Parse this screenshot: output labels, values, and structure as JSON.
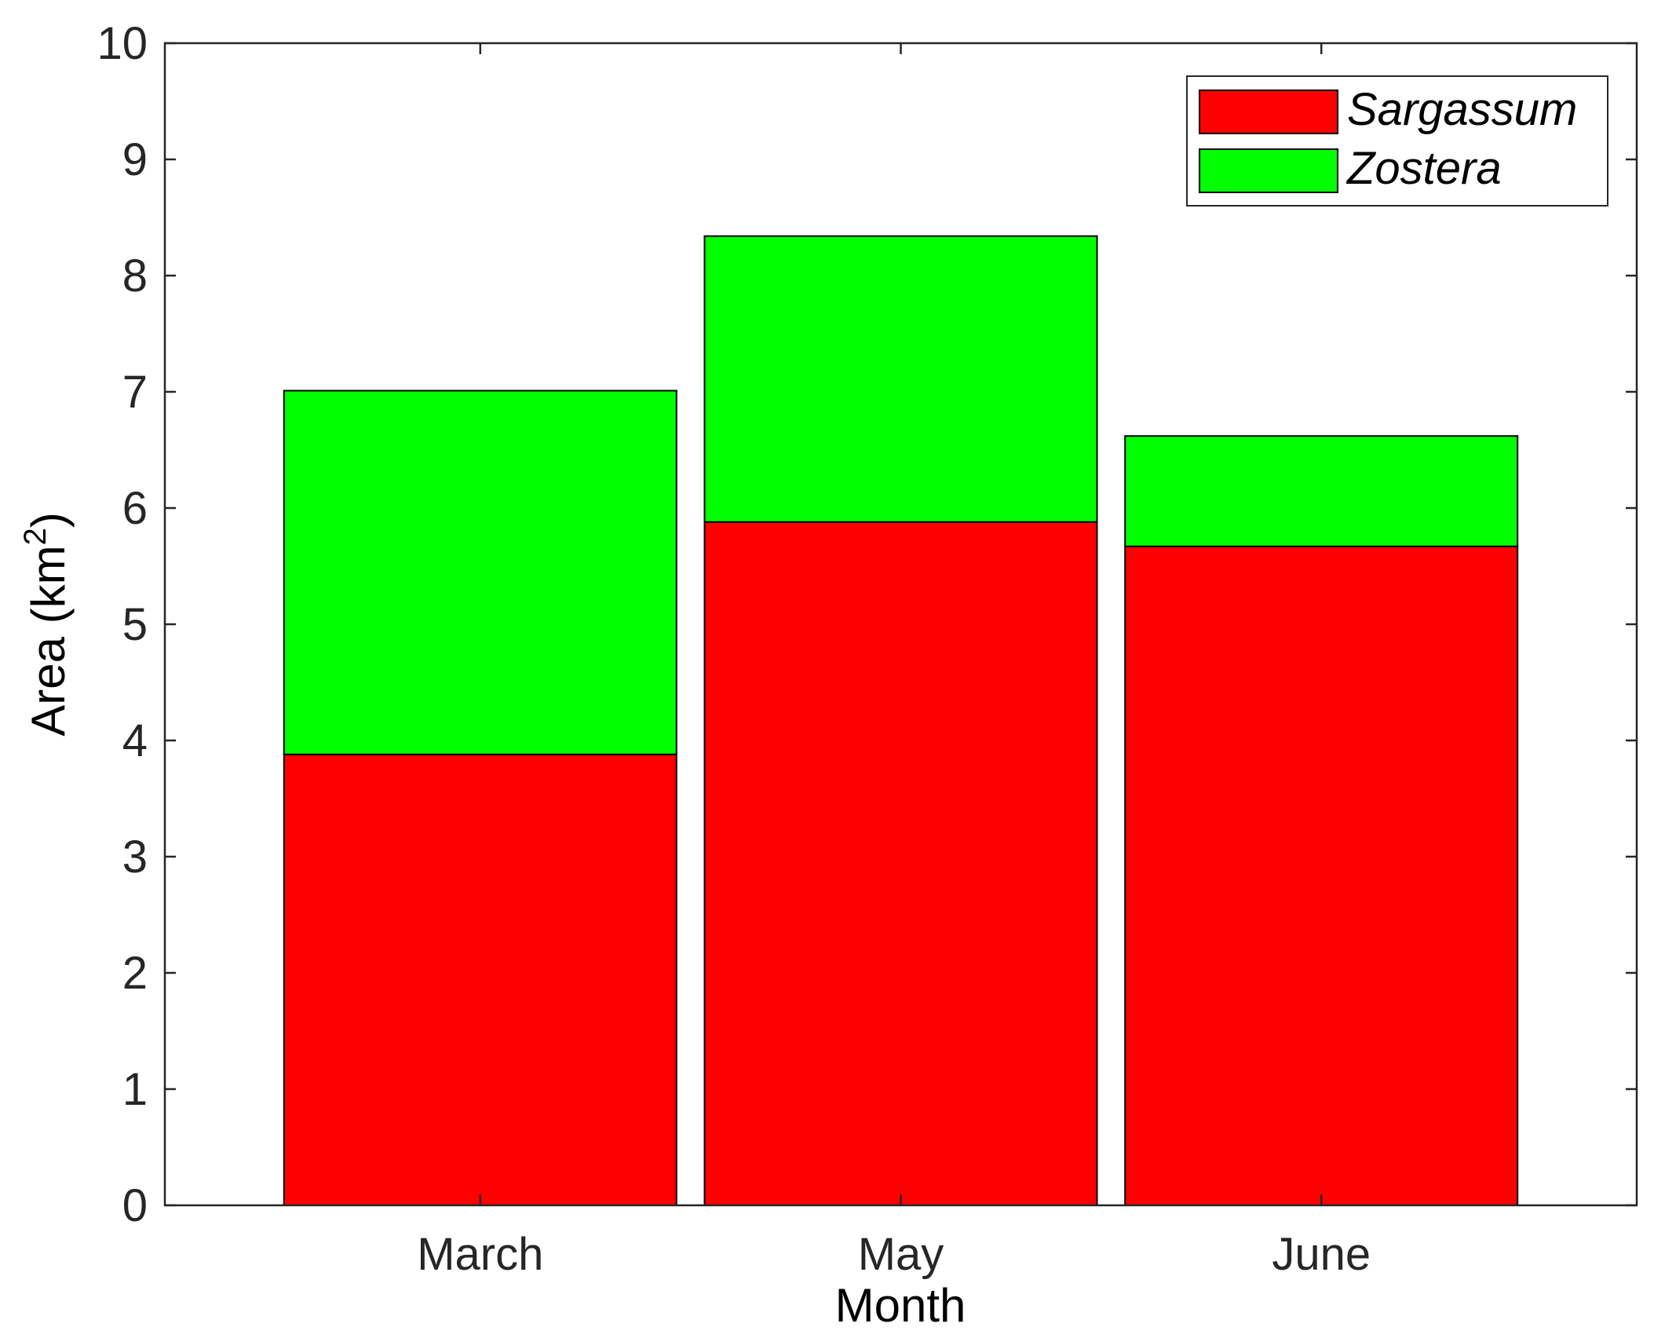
{
  "chart_data": {
    "type": "bar",
    "stacked": true,
    "categories": [
      "March",
      "May",
      "June"
    ],
    "series": [
      {
        "name": "Sargassum",
        "values": [
          3.88,
          5.88,
          5.67
        ],
        "color": "#ff0000"
      },
      {
        "name": "Zostera",
        "values": [
          3.13,
          2.46,
          0.95
        ],
        "color": "#00ff00"
      }
    ],
    "xlabel": "Month",
    "ylabel": {
      "base": "Area (km",
      "superscript": "2",
      "closing": ")"
    },
    "ylim": [
      0,
      10
    ],
    "yticks": [
      "0",
      "1",
      "2",
      "3",
      "4",
      "5",
      "6",
      "7",
      "8",
      "9",
      "10"
    ],
    "legend_position": "top-right",
    "grid": false
  }
}
